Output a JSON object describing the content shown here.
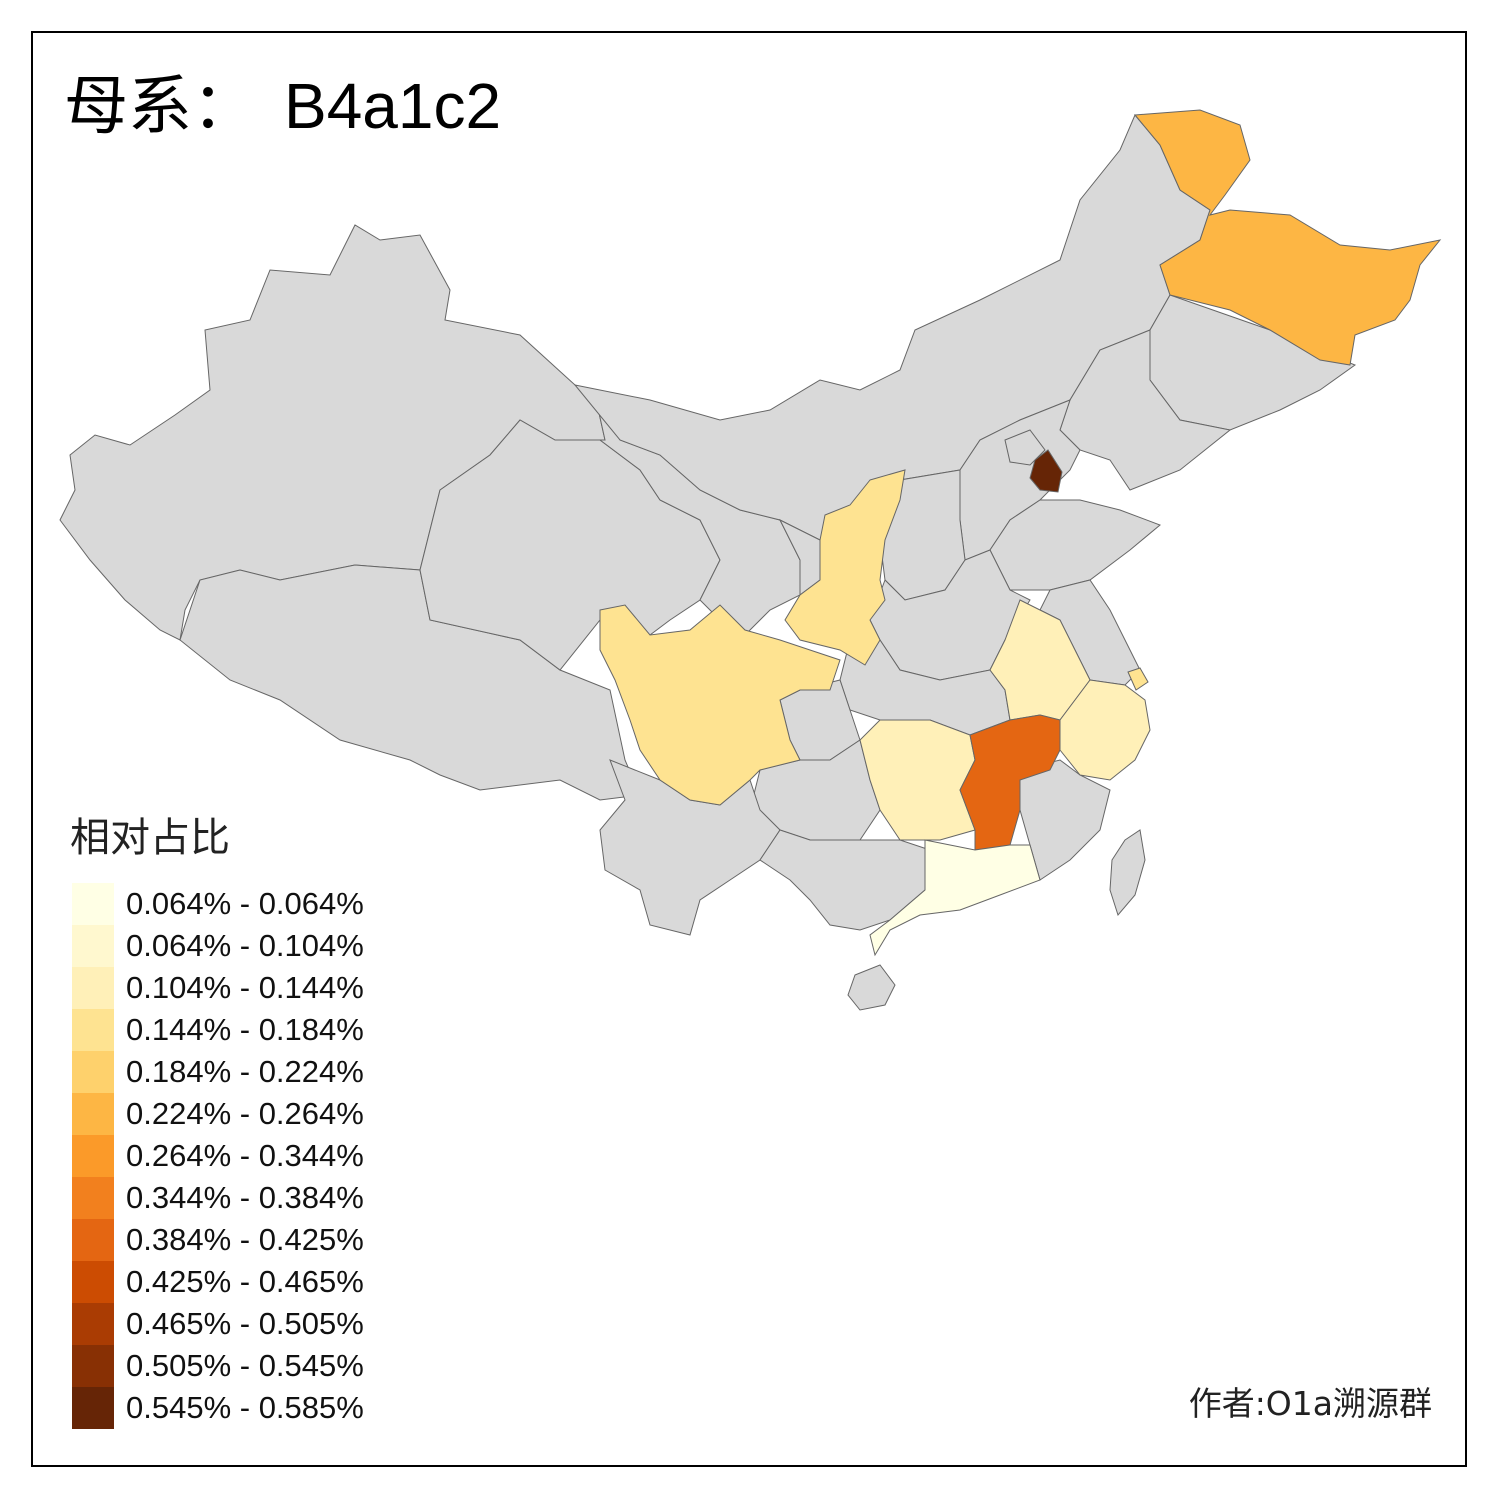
{
  "title": {
    "prefix": "母系：",
    "haplogroup": "B4a1c2"
  },
  "legend": {
    "title": "相对占比",
    "items": [
      {
        "label": "0.064% - 0.064%",
        "color": "#ffffe5"
      },
      {
        "label": "0.064% - 0.104%",
        "color": "#fff8cf"
      },
      {
        "label": "0.104% - 0.144%",
        "color": "#fff0b8"
      },
      {
        "label": "0.144% - 0.184%",
        "color": "#fee391"
      },
      {
        "label": "0.184% - 0.224%",
        "color": "#fed16c"
      },
      {
        "label": "0.224% - 0.264%",
        "color": "#fdb644"
      },
      {
        "label": "0.264% - 0.344%",
        "color": "#fb9a29"
      },
      {
        "label": "0.344% - 0.384%",
        "color": "#f2801e"
      },
      {
        "label": "0.384% - 0.425%",
        "color": "#e46612"
      },
      {
        "label": "0.425% - 0.465%",
        "color": "#cc4c02"
      },
      {
        "label": "0.465% - 0.505%",
        "color": "#aa3c03"
      },
      {
        "label": "0.505% - 0.545%",
        "color": "#883004"
      },
      {
        "label": "0.545% - 0.585%",
        "color": "#662506"
      }
    ]
  },
  "map": {
    "base_color": "#d9d9d9",
    "border_color": "#666666",
    "highlighted": [
      {
        "region": "heilongjiang",
        "color": "#fdb644"
      },
      {
        "region": "tianjin",
        "color": "#662506"
      },
      {
        "region": "shaanxi",
        "color": "#fee391"
      },
      {
        "region": "sichuan",
        "color": "#fee391"
      },
      {
        "region": "anhui",
        "color": "#fff0b8"
      },
      {
        "region": "zhejiang",
        "color": "#fff0b8"
      },
      {
        "region": "shanghai",
        "color": "#fee391"
      },
      {
        "region": "hunan",
        "color": "#fff0b8"
      },
      {
        "region": "jiangxi",
        "color": "#e46612"
      },
      {
        "region": "guangdong",
        "color": "#ffffe5"
      }
    ]
  },
  "author": "作者:O1a溯源群"
}
